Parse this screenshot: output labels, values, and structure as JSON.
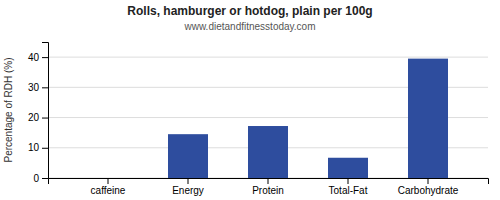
{
  "chart_data": {
    "type": "bar",
    "title": "Rolls, hamburger or hotdog, plain per 100g",
    "subtitle": "www.dietandfitnesstoday.com",
    "categories": [
      "caffeine",
      "Energy",
      "Protein",
      "Total-Fat",
      "Carbohydrate"
    ],
    "values": [
      0,
      14.5,
      17.2,
      6.7,
      39.5
    ],
    "color": "#2e4d9e",
    "ylabel": "Percentage of RDH (%)",
    "ylim": [
      0,
      45
    ],
    "yticks": [
      0,
      10,
      20,
      30,
      40
    ],
    "grid": true
  }
}
